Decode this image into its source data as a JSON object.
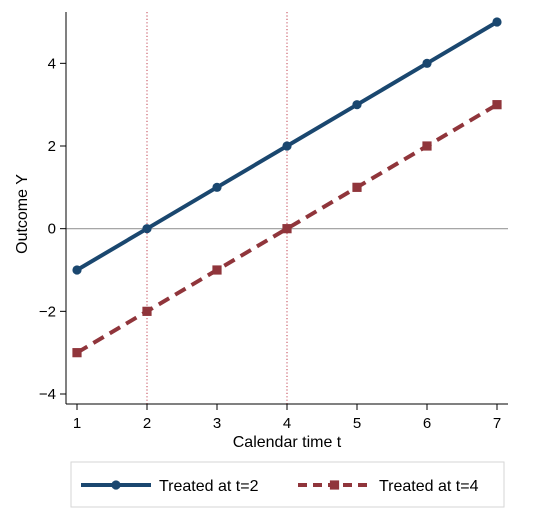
{
  "chart_data": {
    "type": "line",
    "xlabel": "Calendar time t",
    "ylabel": "Outcome Y",
    "xlim": [
      1,
      7
    ],
    "ylim": [
      -4,
      5
    ],
    "xticks": [
      "1",
      "2",
      "3",
      "4",
      "5",
      "6",
      "7"
    ],
    "yticks": [
      "4",
      "2",
      "0",
      "−2",
      "−4"
    ],
    "ytick_values": [
      4,
      2,
      0,
      -2,
      -4
    ],
    "x": [
      1,
      2,
      3,
      4,
      5,
      6,
      7
    ],
    "reference_lines": {
      "vertical_x": [
        2,
        4
      ],
      "horizontal_y": 0
    },
    "series": [
      {
        "name": "Treated at t=2",
        "values": [
          -1,
          0,
          1,
          2,
          3,
          4,
          5
        ],
        "color": "#1a476f",
        "marker": "circle",
        "line_style": "solid"
      },
      {
        "name": "Treated at t=4",
        "values": [
          -3,
          -2,
          -1,
          0,
          1,
          2,
          3
        ],
        "color": "#90353b",
        "marker": "square",
        "line_style": "dashed"
      }
    ],
    "grid": false,
    "legend_position": "bottom"
  }
}
